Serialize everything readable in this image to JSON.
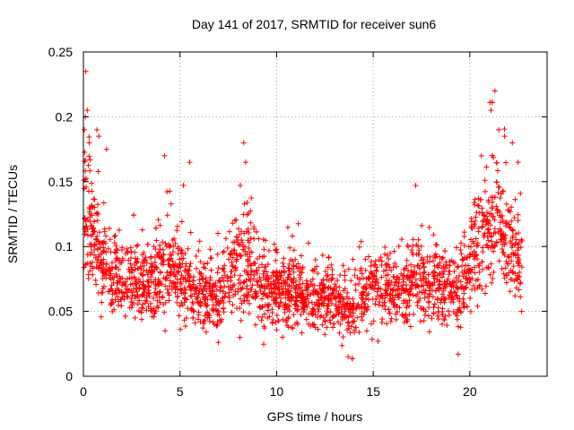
{
  "chart_data": {
    "type": "scatter",
    "title": "Day 141 of 2017, SRMTID for receiver sun6",
    "xlabel": "GPS time / hours",
    "ylabel": "SRMTID / TECUs",
    "xlim": [
      0,
      24
    ],
    "ylim": [
      0,
      0.25
    ],
    "grid": true,
    "marker": "+",
    "marker_color": "#ff0000",
    "x_ticks": [
      0,
      5,
      10,
      15,
      20
    ],
    "x_tick_labels": [
      "0",
      "5",
      "10",
      "15",
      "20"
    ],
    "y_ticks": [
      0,
      0.05,
      0.1,
      0.15,
      0.2,
      0.25
    ],
    "y_tick_labels": [
      "0",
      "0.05",
      "0.1",
      "0.15",
      "0.2",
      "0.25"
    ],
    "envelope": {
      "description": "approximate baseline level of SRMTID versus hour (dense cloud of points around this trend)",
      "x": [
        0,
        0.5,
        1,
        2,
        3,
        4,
        5,
        6,
        7,
        8,
        8.5,
        9,
        10,
        11,
        12,
        13,
        13.5,
        14,
        15,
        16,
        17,
        18,
        19,
        19.5,
        20,
        21,
        21.5,
        22,
        22.7
      ],
      "y": [
        0.13,
        0.11,
        0.085,
        0.075,
        0.07,
        0.08,
        0.078,
        0.065,
        0.06,
        0.085,
        0.095,
        0.07,
        0.065,
        0.065,
        0.06,
        0.06,
        0.05,
        0.055,
        0.075,
        0.06,
        0.075,
        0.07,
        0.065,
        0.065,
        0.09,
        0.11,
        0.12,
        0.1,
        0.085
      ],
      "spread": [
        0.04,
        0.035,
        0.03,
        0.025,
        0.025,
        0.03,
        0.03,
        0.025,
        0.025,
        0.035,
        0.04,
        0.025,
        0.025,
        0.025,
        0.02,
        0.02,
        0.02,
        0.025,
        0.03,
        0.025,
        0.03,
        0.025,
        0.025,
        0.025,
        0.03,
        0.04,
        0.04,
        0.035,
        0.025
      ]
    },
    "notable_points": {
      "x": [
        0.05,
        0.1,
        0.12,
        0.2,
        0.3,
        0.7,
        0.8,
        1.2,
        4.2,
        5.5,
        8.3,
        8.4,
        13.7,
        17.2,
        19.4,
        20.6,
        21.1,
        21.3,
        21.5,
        21.8,
        22.2,
        22.5
      ],
      "y": [
        0.19,
        0.2,
        0.235,
        0.205,
        0.18,
        0.19,
        0.185,
        0.175,
        0.17,
        0.165,
        0.18,
        0.165,
        0.015,
        0.147,
        0.017,
        0.17,
        0.205,
        0.22,
        0.19,
        0.185,
        0.18,
        0.165
      ]
    }
  }
}
